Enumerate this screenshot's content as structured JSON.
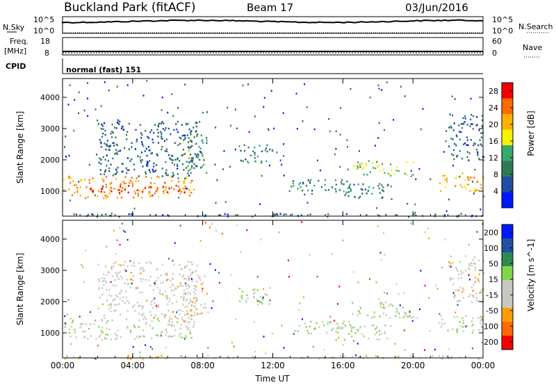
{
  "header": {
    "title": "Buckland Park (fitACF)",
    "beam": "Beam 17",
    "date": "03/Jun/2016"
  },
  "top_panels": {
    "nsky": {
      "label": "N.Sky",
      "left_ticks": [
        "10^5",
        "10^0"
      ],
      "right_ticks": [
        "10^5",
        "10^0"
      ],
      "right_label": "N.Search"
    },
    "freq": {
      "label_1": "Freq.",
      "label_2": "[MHz]",
      "left_ticks": [
        "18",
        "8"
      ],
      "right_ticks": [
        "60",
        "0"
      ],
      "right_label": "Nave"
    },
    "cpid": {
      "label": "CPID",
      "mode": "normal (fast) 151"
    }
  },
  "colors": {
    "power_scale": [
      "#0018ff",
      "#1f4fa0",
      "#2e7a52",
      "#3aa86a",
      "#f7f200",
      "#ffb000",
      "#ff6a00",
      "#f40000"
    ],
    "velocity_scale": [
      "#f40000",
      "#ff6a00",
      "#ffa000",
      "#c8c8c2",
      "#c8c8c2",
      "#7fd848",
      "#2e8a50",
      "#1f4fa0",
      "#0018ff"
    ],
    "ground_scatter": "#c8c8c2"
  },
  "chart_data": [
    {
      "type": "heatmap",
      "title": "",
      "xlabel": "",
      "ylabel": "Slant Range [km]",
      "x_ticks": [
        "00:00",
        "04:00",
        "08:00",
        "12:00",
        "16:00",
        "20:00",
        "00:00"
      ],
      "y_ticks": [
        "1000",
        "2000",
        "3000",
        "4000"
      ],
      "xlim_hours": [
        0,
        24
      ],
      "ylim": [
        200,
        4600
      ],
      "colorbar": {
        "label": "Power [dB]",
        "ticks": [
          "4",
          "8",
          "12",
          "16",
          "20",
          "24",
          "28"
        ],
        "range": [
          0,
          30
        ]
      },
      "echo_regions": [
        {
          "t0": 0.0,
          "t1": 7.5,
          "r0": 800,
          "r1": 1500,
          "p": 22
        },
        {
          "t0": 0.3,
          "t1": 7.2,
          "r0": 950,
          "r1": 1200,
          "p": 27
        },
        {
          "t0": 2.0,
          "t1": 7.8,
          "r0": 1500,
          "r1": 3300,
          "p": 7
        },
        {
          "t0": 6.8,
          "t1": 8.2,
          "r0": 1600,
          "r1": 2900,
          "p": 12
        },
        {
          "t0": 10.0,
          "t1": 12.0,
          "r0": 1900,
          "r1": 2500,
          "p": 10
        },
        {
          "t0": 13.0,
          "t1": 16.5,
          "r0": 1000,
          "r1": 1400,
          "p": 11
        },
        {
          "t0": 15.5,
          "t1": 18.8,
          "r0": 800,
          "r1": 1300,
          "p": 10
        },
        {
          "t0": 16.5,
          "t1": 20.0,
          "r0": 1500,
          "r1": 2000,
          "p": 15
        },
        {
          "t0": 21.5,
          "t1": 24.0,
          "r0": 1000,
          "r1": 1600,
          "p": 20
        },
        {
          "t0": 22.0,
          "t1": 24.0,
          "r0": 2000,
          "r1": 3500,
          "p": 7
        },
        {
          "t0": 0.0,
          "t1": 24.0,
          "r0": 200,
          "r1": 300,
          "p": 6
        }
      ]
    },
    {
      "type": "heatmap",
      "title": "",
      "xlabel": "Time UT",
      "ylabel": "Slant Range [km]",
      "x_ticks": [
        "00:00",
        "04:00",
        "08:00",
        "12:00",
        "16:00",
        "20:00",
        "00:00"
      ],
      "y_ticks": [
        "1000",
        "2000",
        "3000",
        "4000"
      ],
      "xlim_hours": [
        0,
        24
      ],
      "ylim": [
        200,
        4600
      ],
      "colorbar": {
        "label": "Velocity [m s^-1]",
        "ticks": [
          "200",
          "100",
          "50",
          "15",
          "-15",
          "-50",
          "-100",
          "-200"
        ],
        "range": [
          -250,
          250
        ]
      },
      "echo_regions": [
        {
          "t0": 0.0,
          "t1": 7.5,
          "r0": 800,
          "r1": 1500,
          "v": 0
        },
        {
          "t0": 2.0,
          "t1": 7.8,
          "r0": 1500,
          "r1": 3300,
          "v": -30
        },
        {
          "t0": 6.8,
          "t1": 8.2,
          "r0": 1600,
          "r1": 2900,
          "v": -60
        },
        {
          "t0": 10.0,
          "t1": 12.0,
          "r0": 1900,
          "r1": 2500,
          "v": 30
        },
        {
          "t0": 13.0,
          "t1": 16.5,
          "r0": 1000,
          "r1": 1400,
          "v": 30
        },
        {
          "t0": 15.5,
          "t1": 18.8,
          "r0": 800,
          "r1": 1300,
          "v": 20
        },
        {
          "t0": 16.5,
          "t1": 20.0,
          "r0": 1500,
          "r1": 2000,
          "v": 25
        },
        {
          "t0": 21.5,
          "t1": 24.0,
          "r0": 1000,
          "r1": 1600,
          "v": 0
        },
        {
          "t0": 22.0,
          "t1": 24.0,
          "r0": 2000,
          "r1": 3500,
          "v": -40
        },
        {
          "t0": 0.0,
          "t1": 24.0,
          "r0": 200,
          "r1": 300,
          "v": -80
        }
      ]
    }
  ]
}
